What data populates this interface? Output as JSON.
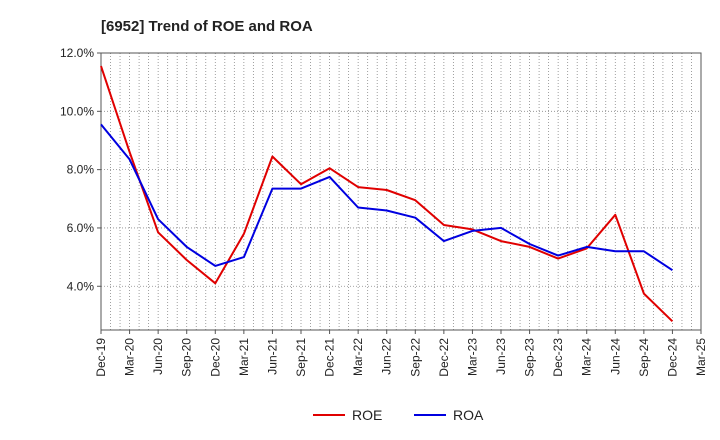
{
  "chart_data": {
    "type": "line",
    "title": "[6952]  Trend of ROE and ROA",
    "categories": [
      "Dec-19",
      "Mar-20",
      "Jun-20",
      "Sep-20",
      "Dec-20",
      "Mar-21",
      "Jun-21",
      "Sep-21",
      "Dec-21",
      "Mar-22",
      "Jun-22",
      "Sep-22",
      "Dec-22",
      "Mar-23",
      "Jun-23",
      "Sep-23",
      "Dec-23",
      "Mar-24",
      "Jun-24",
      "Sep-24",
      "Dec-24",
      "Mar-25"
    ],
    "y_ticks": [
      "12.0%",
      "10.0%",
      "8.0%",
      "6.0%",
      "4.0%"
    ],
    "y_tick_values": [
      12,
      10,
      8,
      6,
      4
    ],
    "ylim": [
      2.5,
      12
    ],
    "grid": true,
    "legend_position": "bottom-center",
    "series": [
      {
        "name": "ROE",
        "color": "#e00000",
        "values": [
          11.55,
          8.6,
          5.85,
          4.9,
          4.1,
          5.8,
          8.45,
          7.5,
          8.05,
          7.4,
          7.3,
          6.95,
          6.1,
          5.95,
          5.55,
          5.35,
          4.95,
          5.3,
          6.45,
          3.75,
          2.8,
          null
        ]
      },
      {
        "name": "ROA",
        "color": "#0000e0",
        "values": [
          9.55,
          8.35,
          6.3,
          5.35,
          4.7,
          5.0,
          7.35,
          7.35,
          7.75,
          6.7,
          6.6,
          6.35,
          5.55,
          5.9,
          6.0,
          5.45,
          5.05,
          5.35,
          5.2,
          5.2,
          4.55,
          null
        ]
      }
    ]
  }
}
